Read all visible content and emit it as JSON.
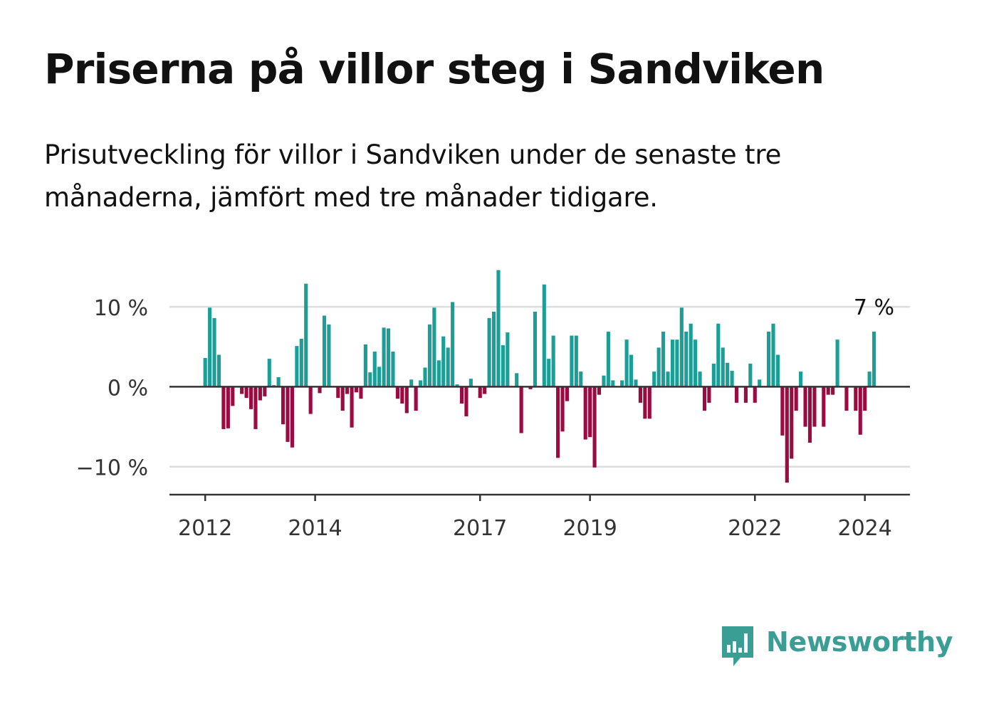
{
  "title": "Priserna på villor steg i Sandviken",
  "subtitle": "Prisutveckling för villor i Sandviken under de senaste tre månaderna, jämfört med tre månader tidigare.",
  "brand": {
    "name": "Newsworthy",
    "logo_icon": "bar-chart-speech-bubble-icon",
    "color": "#3a9e95"
  },
  "colors": {
    "positive": "#1a9e96",
    "negative": "#9b0a40",
    "grid": "#dcdcdc",
    "axis": "#333333"
  },
  "chart_data": {
    "type": "bar",
    "ylim": [
      -13.5,
      15
    ],
    "yticks": [
      10,
      0,
      -10
    ],
    "ytick_labels": [
      "10 %",
      "0 %",
      "−10 %"
    ],
    "xlim": [
      2011.35,
      2024.82
    ],
    "xticks": [
      2012,
      2014,
      2017,
      2019,
      2022,
      2024
    ],
    "xtick_labels": [
      "2012",
      "2014",
      "2017",
      "2019",
      "2022",
      "2024"
    ],
    "start_month": "2012-01",
    "months": [
      "2012-01",
      "2012-02",
      "2012-03",
      "2012-04",
      "2012-05",
      "2012-06",
      "2012-07",
      "2012-08",
      "2012-09",
      "2012-10",
      "2012-11",
      "2012-12",
      "2013-01",
      "2013-02",
      "2013-03",
      "2013-04",
      "2013-05",
      "2013-06",
      "2013-07",
      "2013-08",
      "2013-09",
      "2013-10",
      "2013-11",
      "2013-12",
      "2014-01",
      "2014-02",
      "2014-03",
      "2014-04",
      "2014-05",
      "2014-06",
      "2014-07",
      "2014-08",
      "2014-09",
      "2014-10",
      "2014-11",
      "2014-12",
      "2015-01",
      "2015-02",
      "2015-03",
      "2015-04",
      "2015-05",
      "2015-06",
      "2015-07",
      "2015-08",
      "2015-09",
      "2015-10",
      "2015-11",
      "2015-12",
      "2016-01",
      "2016-02",
      "2016-03",
      "2016-04",
      "2016-05",
      "2016-06",
      "2016-07",
      "2016-08",
      "2016-09",
      "2016-10",
      "2016-11",
      "2016-12",
      "2017-01",
      "2017-02",
      "2017-03",
      "2017-04",
      "2017-05",
      "2017-06",
      "2017-07",
      "2017-08",
      "2017-09",
      "2017-10",
      "2017-11",
      "2017-12",
      "2018-01",
      "2018-02",
      "2018-03",
      "2018-04",
      "2018-05",
      "2018-06",
      "2018-07",
      "2018-08",
      "2018-09",
      "2018-10",
      "2018-11",
      "2018-12",
      "2019-01",
      "2019-02",
      "2019-03",
      "2019-04",
      "2019-05",
      "2019-06",
      "2019-07",
      "2019-08",
      "2019-09",
      "2019-10",
      "2019-11",
      "2019-12",
      "2020-01",
      "2020-02",
      "2020-03",
      "2020-04",
      "2020-05",
      "2020-06",
      "2020-07",
      "2020-08",
      "2020-09",
      "2020-10",
      "2020-11",
      "2020-12",
      "2021-01",
      "2021-02",
      "2021-03",
      "2021-04",
      "2021-05",
      "2021-06",
      "2021-07",
      "2021-08",
      "2021-09",
      "2021-10",
      "2021-11",
      "2021-12",
      "2022-01",
      "2022-02",
      "2022-03",
      "2022-04",
      "2022-05",
      "2022-06",
      "2022-07",
      "2022-08",
      "2022-09",
      "2022-10",
      "2022-11",
      "2022-12",
      "2023-01",
      "2023-02",
      "2023-03",
      "2023-04",
      "2023-05",
      "2023-06",
      "2023-07",
      "2023-08",
      "2023-09",
      "2023-10",
      "2023-11",
      "2023-12",
      "2024-01",
      "2024-02",
      "2024-03"
    ],
    "values": [
      3.6,
      9.9,
      8.6,
      4.0,
      -5.3,
      -5.2,
      -2.4,
      null,
      -0.9,
      -1.4,
      -2.8,
      -5.3,
      -1.7,
      -1.2,
      3.5,
      0.2,
      1.2,
      -4.7,
      -6.9,
      -7.6,
      5.1,
      6.0,
      12.9,
      -3.4,
      null,
      -0.8,
      8.9,
      7.8,
      null,
      -1.4,
      -3.0,
      -0.9,
      -5.1,
      -0.7,
      -1.5,
      5.3,
      1.8,
      4.4,
      2.5,
      7.4,
      7.3,
      4.4,
      -1.5,
      -2.1,
      -3.3,
      0.9,
      -3.0,
      0.8,
      2.4,
      7.8,
      9.9,
      3.3,
      6.3,
      4.9,
      10.6,
      0.3,
      -2.1,
      -3.7,
      1.0,
      null,
      -1.4,
      -0.9,
      8.6,
      9.4,
      14.6,
      5.2,
      6.8,
      null,
      1.7,
      -5.8,
      null,
      -0.3,
      9.4,
      null,
      12.8,
      3.5,
      6.4,
      -8.9,
      -5.6,
      -1.8,
      6.4,
      6.4,
      1.9,
      -6.6,
      -6.3,
      -10.1,
      -1.0,
      1.4,
      6.9,
      0.8,
      null,
      0.8,
      5.9,
      4.0,
      0.9,
      -2.0,
      -4.0,
      -4.0,
      1.9,
      4.9,
      6.9,
      1.9,
      5.9,
      5.9,
      9.9,
      6.9,
      7.9,
      5.9,
      1.9,
      -3.0,
      -2.0,
      2.9,
      7.9,
      4.9,
      3.0,
      2.0,
      -2.0,
      null,
      -2.0,
      2.9,
      -2.0,
      0.9,
      null,
      6.9,
      7.9,
      4.0,
      -6.1,
      -12.0,
      -9.0,
      -3.0,
      1.9,
      -5.0,
      -7.0,
      -5.0,
      null,
      -5.0,
      -1.0,
      -1.0,
      5.9,
      null,
      -3.0,
      null,
      -3.0,
      -6.0,
      -3.0,
      1.9,
      6.9
    ],
    "annotation": {
      "text": "7 %",
      "month": "2024-03",
      "value": 7
    }
  }
}
